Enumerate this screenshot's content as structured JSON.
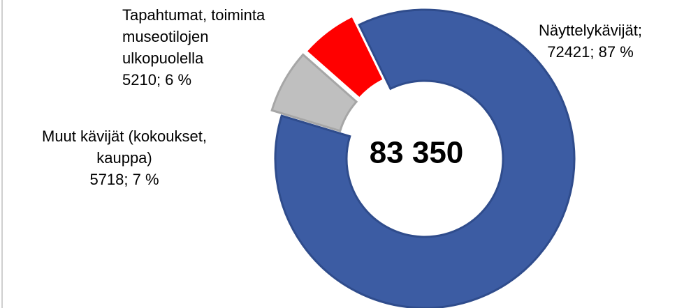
{
  "chart_data": {
    "type": "donut",
    "categories": [
      "Näyttelykävijät;",
      "Muut kävijät (kokoukset, kauppa)",
      "Tapahtumat, toiminta museotilojen ulkopuolella"
    ],
    "values": [
      72421,
      5718,
      5210
    ],
    "value_labels": [
      "72421; 87 %",
      "5718; 7 %",
      "5210; 6 %"
    ],
    "colors": [
      "#3c5ca3",
      "#bfbfbf",
      "#ff0000"
    ],
    "center_label": "83 350"
  }
}
